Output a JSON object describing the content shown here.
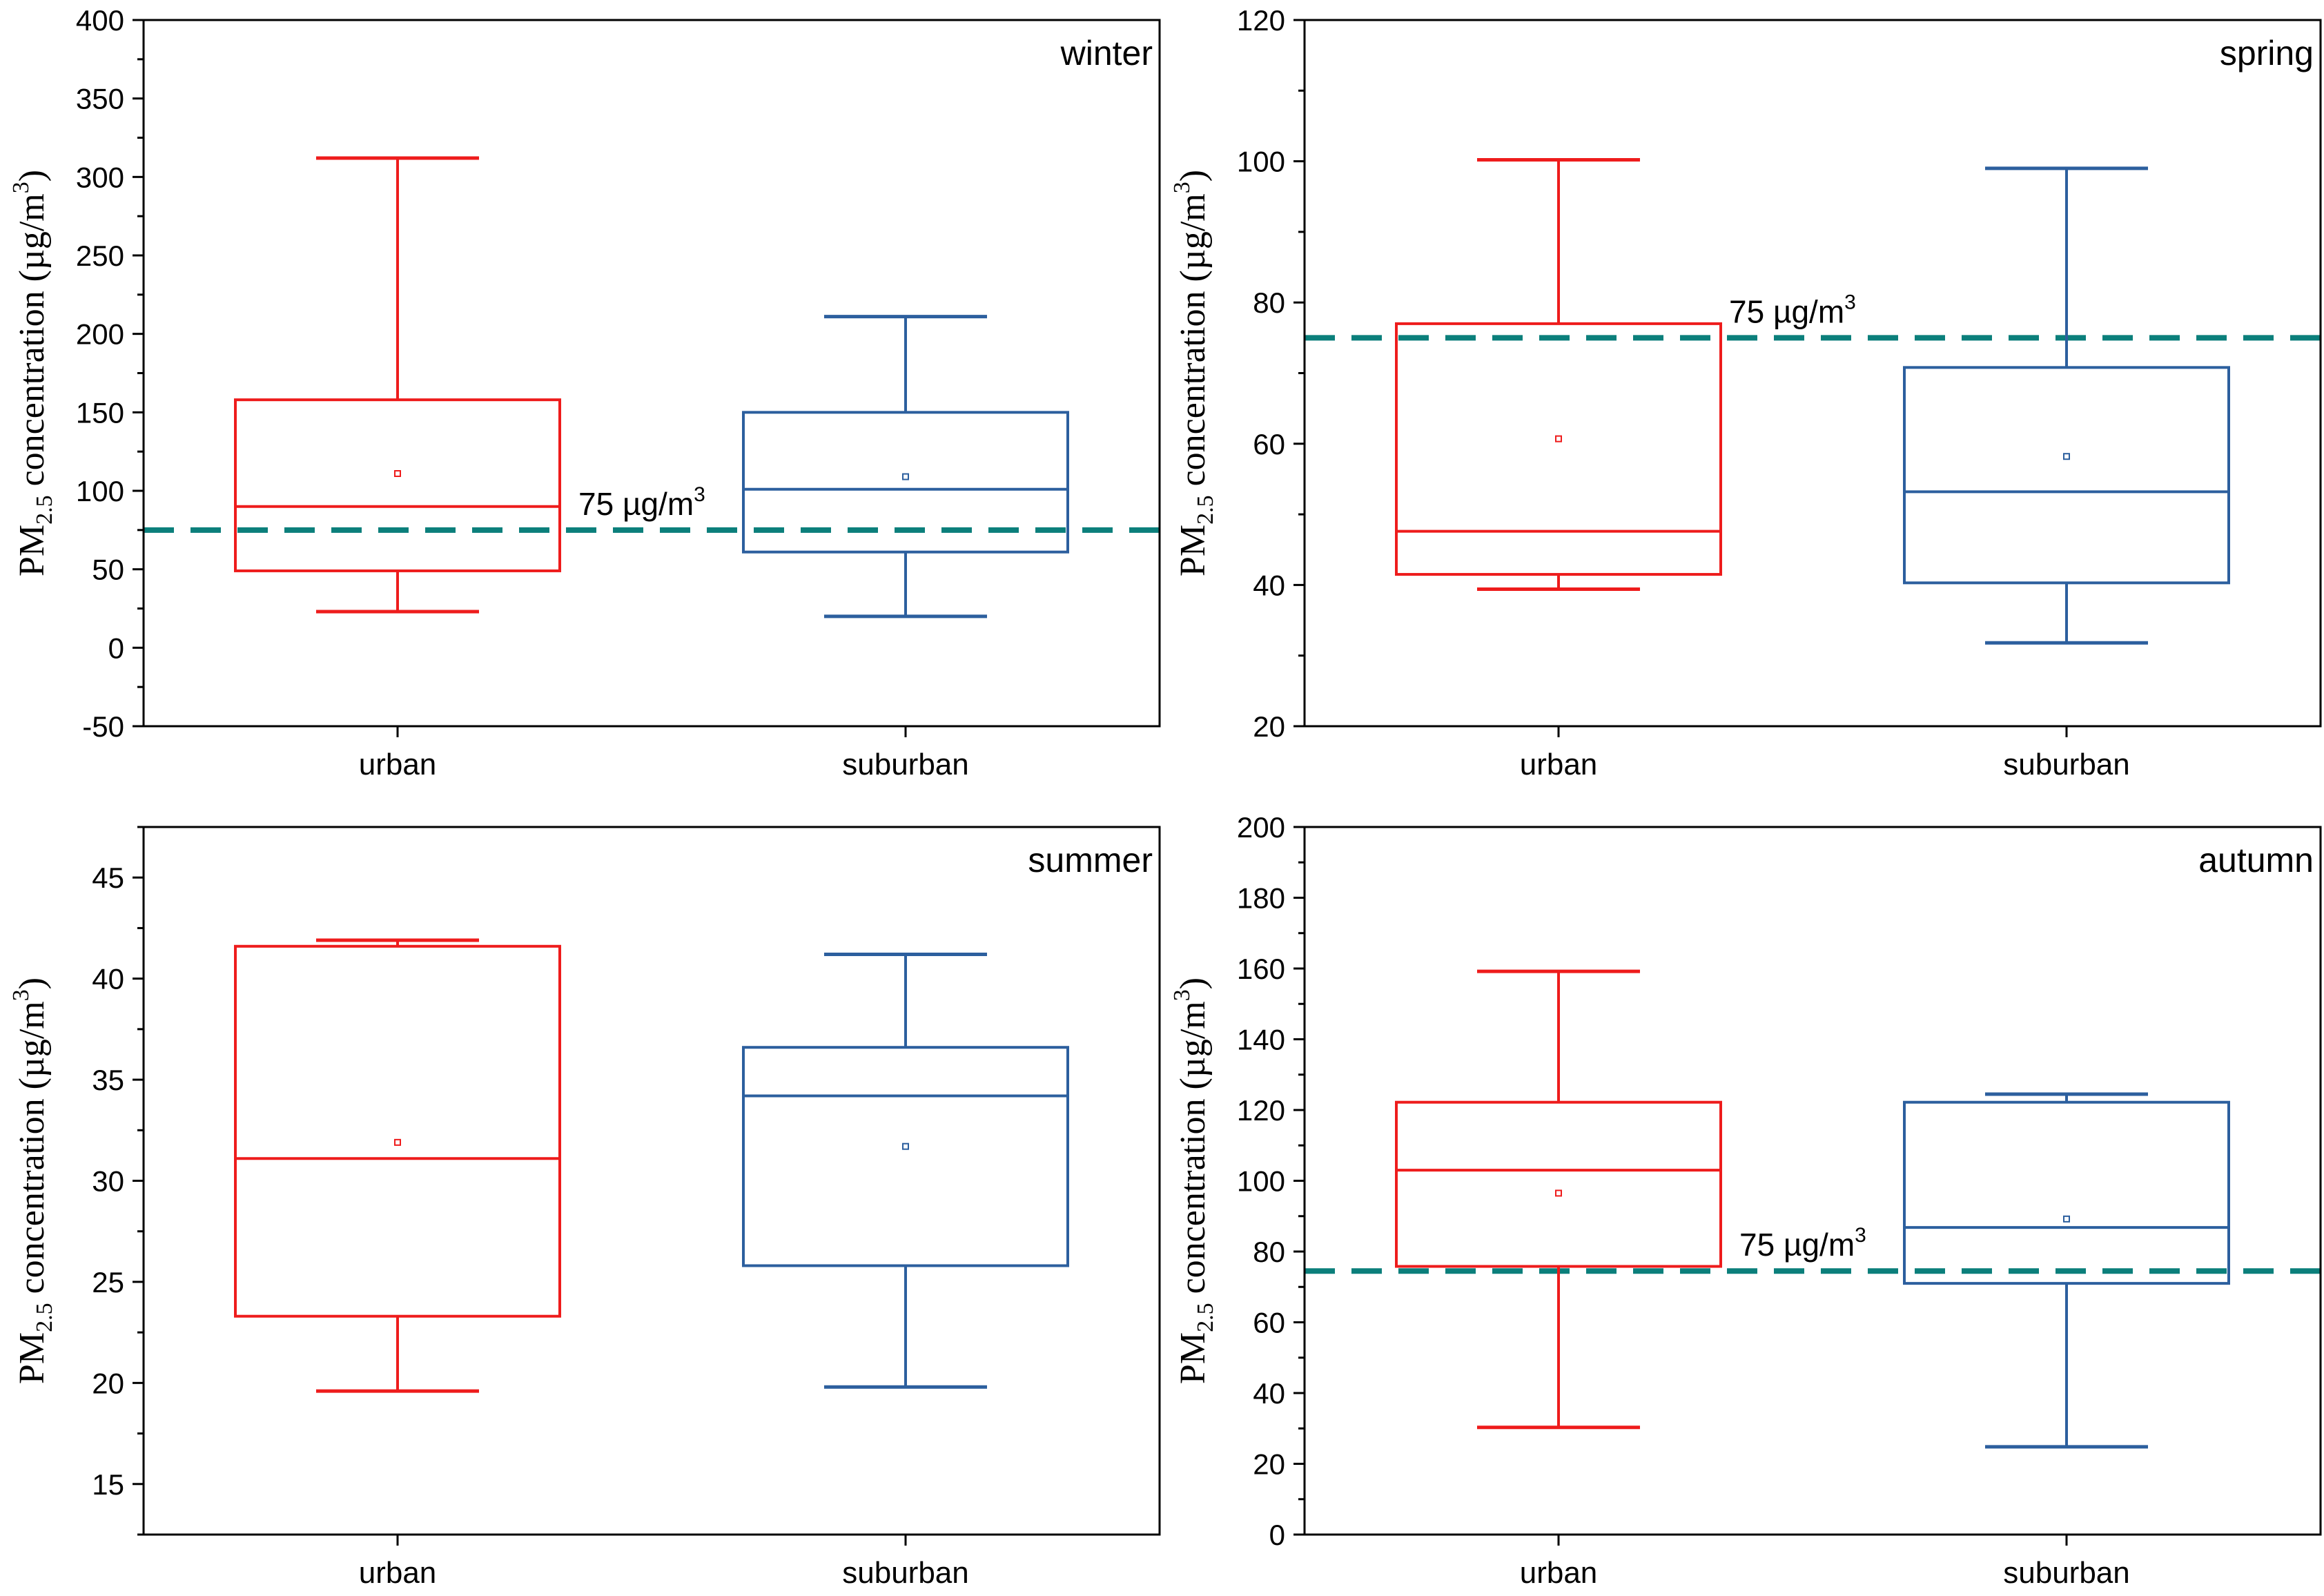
{
  "figure": {
    "y_axis_label": {
      "main": "PM",
      "subscript": "2.5",
      "middle": " concentration (µg/m",
      "superscript": "3",
      "end": ")"
    }
  },
  "colors": {
    "urban": "#ee1c1c",
    "suburban": "#2c5f9e",
    "reference": "#0b7f7b",
    "axis": "#000000"
  },
  "chart_data": [
    {
      "type": "box",
      "season": "winter",
      "categories": [
        "urban",
        "suburban"
      ],
      "ylim": [
        -50,
        400
      ],
      "major_ticks": [
        -50,
        0,
        50,
        100,
        150,
        200,
        250,
        300,
        350,
        400
      ],
      "tick_labels": [
        "-50",
        "0",
        "50",
        "100",
        "150",
        "200",
        "250",
        "300",
        "350",
        "400"
      ],
      "reference": {
        "value": 75,
        "label": "75 µg/m",
        "sup": "3"
      },
      "boxes": [
        {
          "name": "urban",
          "min": 23,
          "q1": 49,
          "median": 90,
          "q3": 158,
          "max": 312,
          "mean": 111
        },
        {
          "name": "suburban",
          "min": 20,
          "q1": 61,
          "median": 101,
          "q3": 150,
          "max": 211,
          "mean": 109
        }
      ]
    },
    {
      "type": "box",
      "season": "spring",
      "categories": [
        "urban",
        "suburban"
      ],
      "ylim": [
        20,
        120
      ],
      "major_ticks": [
        20,
        40,
        60,
        80,
        100,
        120
      ],
      "tick_labels": [
        "20",
        "40",
        "60",
        "80",
        "100",
        "120"
      ],
      "reference": {
        "value": 75,
        "label": "75 µg/m",
        "sup": "3"
      },
      "boxes": [
        {
          "name": "urban",
          "min": 39.4,
          "q1": 41.5,
          "median": 47.6,
          "q3": 77,
          "max": 100.2,
          "mean": 60.7
        },
        {
          "name": "suburban",
          "min": 31.8,
          "q1": 40.3,
          "median": 53.2,
          "q3": 70.8,
          "max": 99,
          "mean": 58.2
        }
      ]
    },
    {
      "type": "box",
      "season": "summer",
      "categories": [
        "urban",
        "suburban"
      ],
      "ylim": [
        12.5,
        47.5
      ],
      "major_ticks": [
        15,
        20,
        25,
        30,
        35,
        40,
        45
      ],
      "tick_labels": [
        "15",
        "20",
        "25",
        "30",
        "35",
        "40",
        "45"
      ],
      "reference": null,
      "boxes": [
        {
          "name": "urban",
          "min": 19.6,
          "q1": 23.3,
          "median": 31.1,
          "q3": 41.6,
          "max": 41.9,
          "mean": 31.9
        },
        {
          "name": "suburban",
          "min": 19.8,
          "q1": 25.8,
          "median": 34.2,
          "q3": 36.6,
          "max": 41.2,
          "mean": 31.7
        }
      ]
    },
    {
      "type": "box",
      "season": "autumn",
      "categories": [
        "urban",
        "suburban"
      ],
      "ylim": [
        0,
        200
      ],
      "major_ticks": [
        0,
        20,
        40,
        60,
        80,
        100,
        120,
        140,
        160,
        180,
        200
      ],
      "tick_labels": [
        "0",
        "20",
        "40",
        "60",
        "80",
        "100",
        "120",
        "140",
        "160",
        "180",
        "200"
      ],
      "reference": {
        "value": 74.5,
        "label": "75 µg/m",
        "sup": "3"
      },
      "boxes": [
        {
          "name": "urban",
          "min": 30.3,
          "q1": 75.8,
          "median": 103,
          "q3": 122.2,
          "max": 159.2,
          "mean": 96.5
        },
        {
          "name": "suburban",
          "min": 24.8,
          "q1": 71,
          "median": 86.8,
          "q3": 122.2,
          "max": 124.5,
          "mean": 89.2
        }
      ]
    }
  ]
}
